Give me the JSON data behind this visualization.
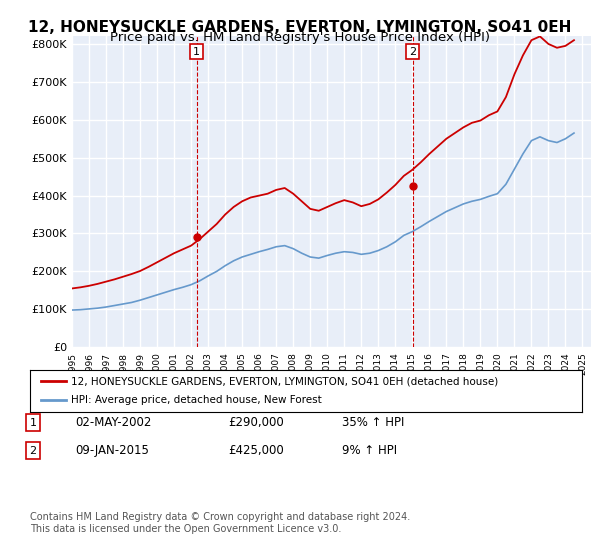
{
  "title": "12, HONEYSUCKLE GARDENS, EVERTON, LYMINGTON, SO41 0EH",
  "subtitle": "Price paid vs. HM Land Registry's House Price Index (HPI)",
  "title_fontsize": 11,
  "subtitle_fontsize": 9.5,
  "ylabel_ticks": [
    "£0",
    "£100K",
    "£200K",
    "£300K",
    "£400K",
    "£500K",
    "£600K",
    "£700K",
    "£800K"
  ],
  "ytick_vals": [
    0,
    100000,
    200000,
    300000,
    400000,
    500000,
    600000,
    700000,
    800000
  ],
  "ylim": [
    0,
    820000
  ],
  "xlim_start": 1995.0,
  "xlim_end": 2025.5,
  "property_color": "#cc0000",
  "hpi_color": "#6699cc",
  "sale1_x": 2002.33,
  "sale1_y": 290000,
  "sale2_x": 2015.03,
  "sale2_y": 425000,
  "sale1_label": "1",
  "sale2_label": "2",
  "legend_property": "12, HONEYSUCKLE GARDENS, EVERTON, LYMINGTON, SO41 0EH (detached house)",
  "legend_hpi": "HPI: Average price, detached house, New Forest",
  "table_row1": [
    "1",
    "02-MAY-2002",
    "£290,000",
    "35% ↑ HPI"
  ],
  "table_row2": [
    "2",
    "09-JAN-2015",
    "£425,000",
    "9% ↑ HPI"
  ],
  "footer": "Contains HM Land Registry data © Crown copyright and database right 2024.\nThis data is licensed under the Open Government Licence v3.0.",
  "bg_color": "#ffffff",
  "plot_bg_color": "#e8eef8",
  "grid_color": "#ffffff"
}
